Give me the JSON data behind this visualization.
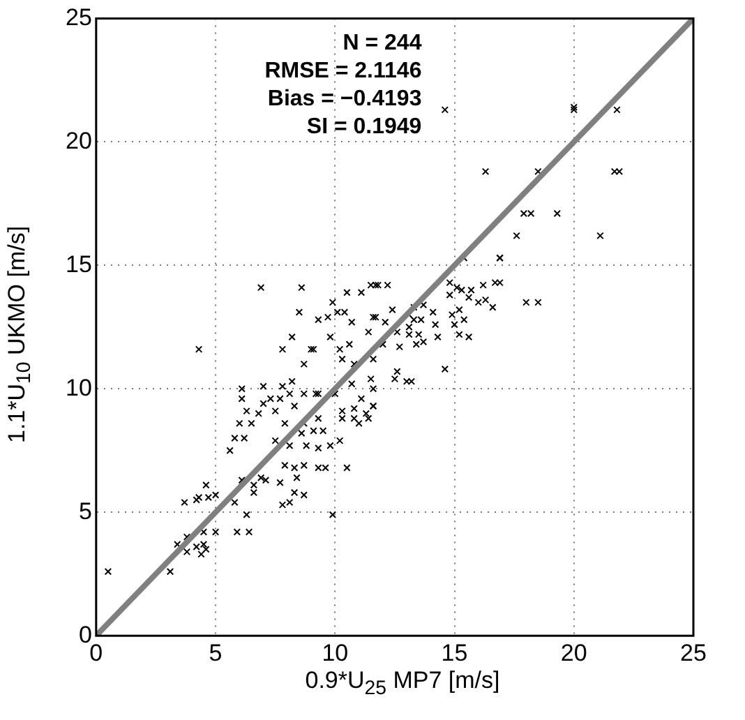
{
  "chart_data": {
    "type": "scatter",
    "xlabel": "0.9*U$_{25}$ MP7 [m/s]",
    "ylabel": "1.1*U$_{10}$ UKMO [m/s]",
    "xlim": [
      0,
      25
    ],
    "ylim": [
      0,
      25
    ],
    "xticks": [
      0,
      5,
      10,
      15,
      20,
      25
    ],
    "yticks": [
      0,
      5,
      10,
      15,
      20,
      25
    ],
    "grid": true,
    "annotations": [
      "N = 244",
      "RMSE = 2.1146",
      "Bias = −0.4193",
      "SI = 0.1949"
    ],
    "series": [
      {
        "color": "#000000",
        "marker": "cross",
        "x": [
          14.6,
          20.0,
          20.0,
          21.8,
          16.3,
          18.5,
          21.7,
          21.9,
          17.9,
          18.2,
          19.3,
          17.6,
          21.1,
          16.9,
          6.9,
          8.6,
          4.3,
          10.5,
          11.1,
          11.5,
          11.7,
          11.8,
          9.9,
          10.1,
          10.4,
          8.5,
          9.7,
          9.3,
          10.7,
          11.7,
          8.2,
          9.8,
          11.4,
          7.8,
          9.0,
          9.1,
          10.2,
          10.6,
          10.3,
          8.7,
          10.8,
          6.1,
          6.1,
          7.0,
          7.8,
          8.2,
          8.1,
          7.7,
          7.3,
          8.7,
          9.2,
          9.3,
          8.3,
          6.3,
          6.8,
          7.0,
          7.5,
          10.0,
          10.7,
          11.1,
          11.6,
          10.3,
          10.8,
          11.3,
          6.0,
          6.5,
          7.9,
          8.7,
          9.3,
          10.3,
          10.8,
          11.0,
          9.5,
          9.1,
          8.6,
          5.8,
          6.2,
          7.5,
          8.1,
          8.8,
          9.3,
          9.8,
          10.2,
          5.6,
          15.4,
          16.9,
          12.2,
          14.8,
          15.1,
          15.3,
          15.7,
          16.2,
          16.7,
          16.9,
          14.8,
          15.6,
          16.0,
          16.3,
          16.6,
          18.0,
          18.5,
          15.2,
          14.9,
          15.4,
          15.0,
          15.2,
          15.6,
          12.4,
          11.6,
          12.1,
          13.3,
          13.7,
          14.1,
          13.1,
          13.3,
          13.6,
          13.1,
          14.2,
          12.6,
          13.1,
          13.5,
          14.3,
          12.0,
          12.7,
          13.4,
          13.7,
          11.6,
          14.6,
          12.5,
          12.6,
          13.0,
          13.2,
          11.5,
          11.6,
          11.6,
          11.4,
          0.5,
          3.1,
          3.4,
          3.8,
          4.2,
          4.4,
          4.6,
          4.5,
          3.8,
          4.5,
          5.0,
          5.9,
          6.4,
          6.3,
          3.7,
          4.2,
          4.3,
          4.7,
          5.0,
          4.6,
          5.8,
          6.1,
          6.6,
          6.6,
          6.9,
          7.1,
          7.7,
          7.9,
          8.3,
          8.7,
          8.4,
          8.3,
          8.7,
          7.8,
          8.1,
          9.9,
          9.3,
          9.6,
          10.5
        ],
        "values": [
          21.3,
          21.3,
          21.4,
          21.3,
          18.8,
          18.8,
          18.8,
          18.8,
          17.1,
          17.1,
          17.1,
          16.2,
          16.2,
          15.3,
          14.1,
          14.1,
          11.6,
          13.9,
          13.9,
          14.2,
          14.2,
          14.2,
          13.5,
          13.1,
          13.1,
          13.1,
          12.9,
          12.8,
          12.7,
          12.9,
          12.1,
          12.1,
          12.3,
          11.6,
          11.6,
          11.6,
          11.6,
          11.8,
          11.2,
          11.0,
          11.0,
          10.0,
          9.6,
          10.1,
          10.1,
          10.3,
          9.8,
          9.6,
          9.6,
          9.8,
          9.8,
          9.8,
          9.3,
          9.1,
          9.0,
          9.4,
          9.1,
          9.8,
          10.2,
          9.6,
          9.3,
          9.1,
          9.2,
          9.0,
          8.6,
          8.6,
          8.6,
          8.6,
          8.8,
          8.8,
          8.8,
          8.6,
          8.3,
          8.3,
          8.2,
          8.0,
          8.0,
          7.9,
          7.7,
          7.7,
          7.6,
          7.7,
          7.9,
          7.5,
          15.3,
          15.3,
          14.2,
          14.3,
          14.1,
          14.0,
          14.0,
          14.2,
          14.3,
          14.3,
          13.8,
          13.7,
          13.5,
          13.6,
          13.3,
          13.5,
          13.5,
          13.2,
          13.0,
          12.8,
          12.6,
          12.2,
          12.1,
          13.2,
          12.9,
          12.7,
          13.3,
          13.4,
          13.1,
          13.0,
          12.8,
          12.8,
          12.5,
          12.6,
          12.3,
          12.2,
          12.2,
          12.1,
          11.8,
          11.7,
          11.8,
          11.9,
          11.2,
          10.8,
          10.4,
          10.7,
          10.3,
          10.3,
          10.4,
          10.0,
          9.3,
          8.8,
          2.6,
          2.6,
          3.7,
          3.4,
          3.6,
          3.3,
          3.5,
          3.7,
          4.0,
          4.2,
          4.2,
          4.2,
          4.2,
          4.9,
          5.4,
          5.5,
          5.6,
          5.6,
          5.7,
          6.1,
          5.4,
          6.3,
          6.1,
          5.8,
          6.4,
          6.3,
          6.2,
          6.9,
          6.8,
          6.9,
          6.4,
          5.8,
          5.7,
          5.3,
          5.4,
          4.9,
          6.8,
          6.8,
          6.8
        ]
      },
      {
        "type": "line",
        "color": "#808080",
        "marker": "none",
        "x": [
          0,
          25
        ],
        "values": [
          0,
          25
        ]
      }
    ]
  }
}
